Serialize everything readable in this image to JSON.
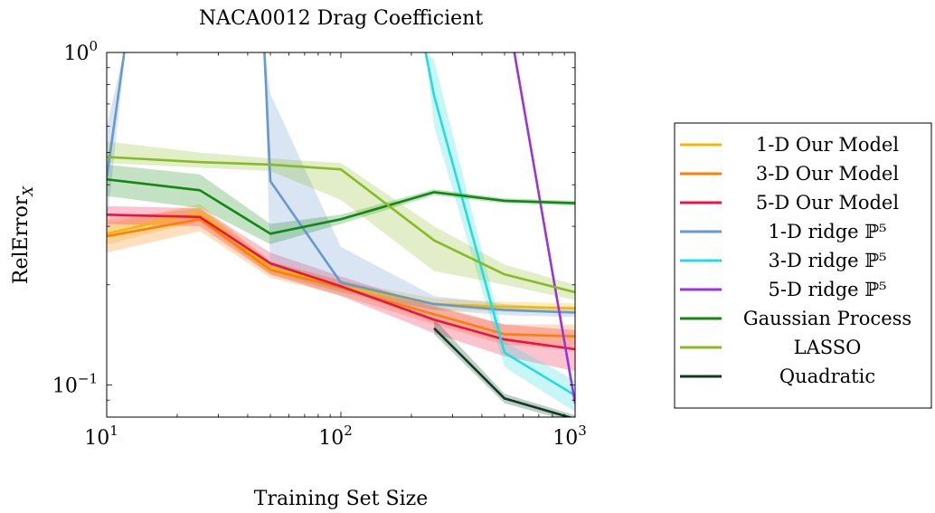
{
  "chart_data": {
    "type": "line",
    "title": "NACA0012 Drag Coefficient",
    "xlabel": "Training Set Size",
    "ylabel": "RelError",
    "ylabel_subscript": "X",
    "x_scale": "log",
    "y_scale": "log",
    "xlim": [
      10,
      1000
    ],
    "ylim": [
      0.08,
      1
    ],
    "x_ticks": [
      {
        "base": "10",
        "exp": "1",
        "value": 10
      },
      {
        "base": "10",
        "exp": "2",
        "value": 100
      },
      {
        "base": "10",
        "exp": "3",
        "value": 1000
      }
    ],
    "y_ticks": [
      {
        "base": "10",
        "exp": "0",
        "value": 1
      },
      {
        "base": "10",
        "exp": "−1",
        "value": 0.1
      }
    ],
    "grid": false,
    "legend_position": "right",
    "series": [
      {
        "name": "1-D Our Model",
        "color": "#f5b800",
        "x": [
          10,
          25,
          50,
          100,
          250,
          500,
          1000
        ],
        "y": [
          0.285,
          0.33,
          0.225,
          0.198,
          0.175,
          0.172,
          0.17
        ],
        "lower": [
          0.265,
          0.31,
          0.215,
          0.19,
          0.168,
          0.166,
          0.164
        ],
        "upper": [
          0.305,
          0.35,
          0.235,
          0.206,
          0.182,
          0.178,
          0.176
        ]
      },
      {
        "name": "3-D Our Model",
        "color": "#ff8000",
        "x": [
          10,
          25,
          50,
          100,
          250,
          500,
          1000
        ],
        "y": [
          0.28,
          0.315,
          0.222,
          0.196,
          0.163,
          0.142,
          0.14
        ],
        "lower": [
          0.25,
          0.29,
          0.21,
          0.186,
          0.152,
          0.132,
          0.128
        ],
        "upper": [
          0.315,
          0.34,
          0.235,
          0.206,
          0.174,
          0.152,
          0.152
        ]
      },
      {
        "name": "5-D Our Model",
        "color": "#ee1144",
        "x": [
          10,
          25,
          50,
          100,
          250,
          500,
          1000
        ],
        "y": [
          0.325,
          0.32,
          0.232,
          0.198,
          0.157,
          0.137,
          0.128
        ],
        "lower": [
          0.305,
          0.3,
          0.215,
          0.185,
          0.143,
          0.122,
          0.11
        ],
        "upper": [
          0.345,
          0.34,
          0.25,
          0.212,
          0.172,
          0.152,
          0.146
        ]
      },
      {
        "name": "1-D ridge ℙ⁵",
        "color": "#6699cc",
        "x": [
          10,
          12,
          47,
          50,
          100,
          250,
          500,
          1000
        ],
        "y": [
          0.42,
          1.05,
          1.05,
          0.41,
          0.203,
          0.175,
          0.168,
          0.165
        ],
        "lower": [
          0.3,
          1.0,
          1.0,
          0.22,
          0.19,
          0.168,
          0.162,
          0.16
        ],
        "upper": [
          0.6,
          1.05,
          1.05,
          0.75,
          0.26,
          0.185,
          0.175,
          0.17
        ]
      },
      {
        "name": "3-D ridge ℙ⁵",
        "color": "#22dddd",
        "x": [
          230,
          250,
          500,
          1000
        ],
        "y": [
          1.0,
          0.74,
          0.125,
          0.093
        ],
        "lower": [
          1.0,
          0.6,
          0.113,
          0.083
        ],
        "upper": [
          1.0,
          0.95,
          0.135,
          0.103
        ]
      },
      {
        "name": "5-D ridge ℙ⁵",
        "color": "#9933dd",
        "x": [
          550,
          1000
        ],
        "y": [
          1.0,
          0.088
        ],
        "lower": [
          1.0,
          0.085
        ],
        "upper": [
          1.0,
          0.091
        ]
      },
      {
        "name": "Gaussian Process",
        "color": "#118811",
        "x": [
          10,
          25,
          50,
          100,
          250,
          500,
          1000
        ],
        "y": [
          0.415,
          0.385,
          0.285,
          0.315,
          0.38,
          0.358,
          0.352
        ],
        "lower": [
          0.37,
          0.34,
          0.265,
          0.305,
          0.372,
          0.352,
          0.346
        ],
        "upper": [
          0.46,
          0.43,
          0.305,
          0.325,
          0.388,
          0.364,
          0.358
        ]
      },
      {
        "name": "LASSO",
        "color": "#88bb22",
        "x": [
          10,
          25,
          50,
          100,
          250,
          500,
          1000
        ],
        "y": [
          0.485,
          0.468,
          0.46,
          0.445,
          0.272,
          0.215,
          0.19
        ],
        "lower": [
          0.465,
          0.45,
          0.44,
          0.36,
          0.22,
          0.2,
          0.18
        ],
        "upper": [
          0.54,
          0.5,
          0.48,
          0.465,
          0.3,
          0.23,
          0.2
        ]
      },
      {
        "name": "Quadratic",
        "color": "#0b3d22",
        "x": [
          250,
          500,
          1000
        ],
        "y": [
          0.148,
          0.091,
          0.079
        ],
        "lower": [
          0.142,
          0.088,
          0.077
        ],
        "upper": [
          0.158,
          0.094,
          0.081
        ]
      }
    ]
  }
}
